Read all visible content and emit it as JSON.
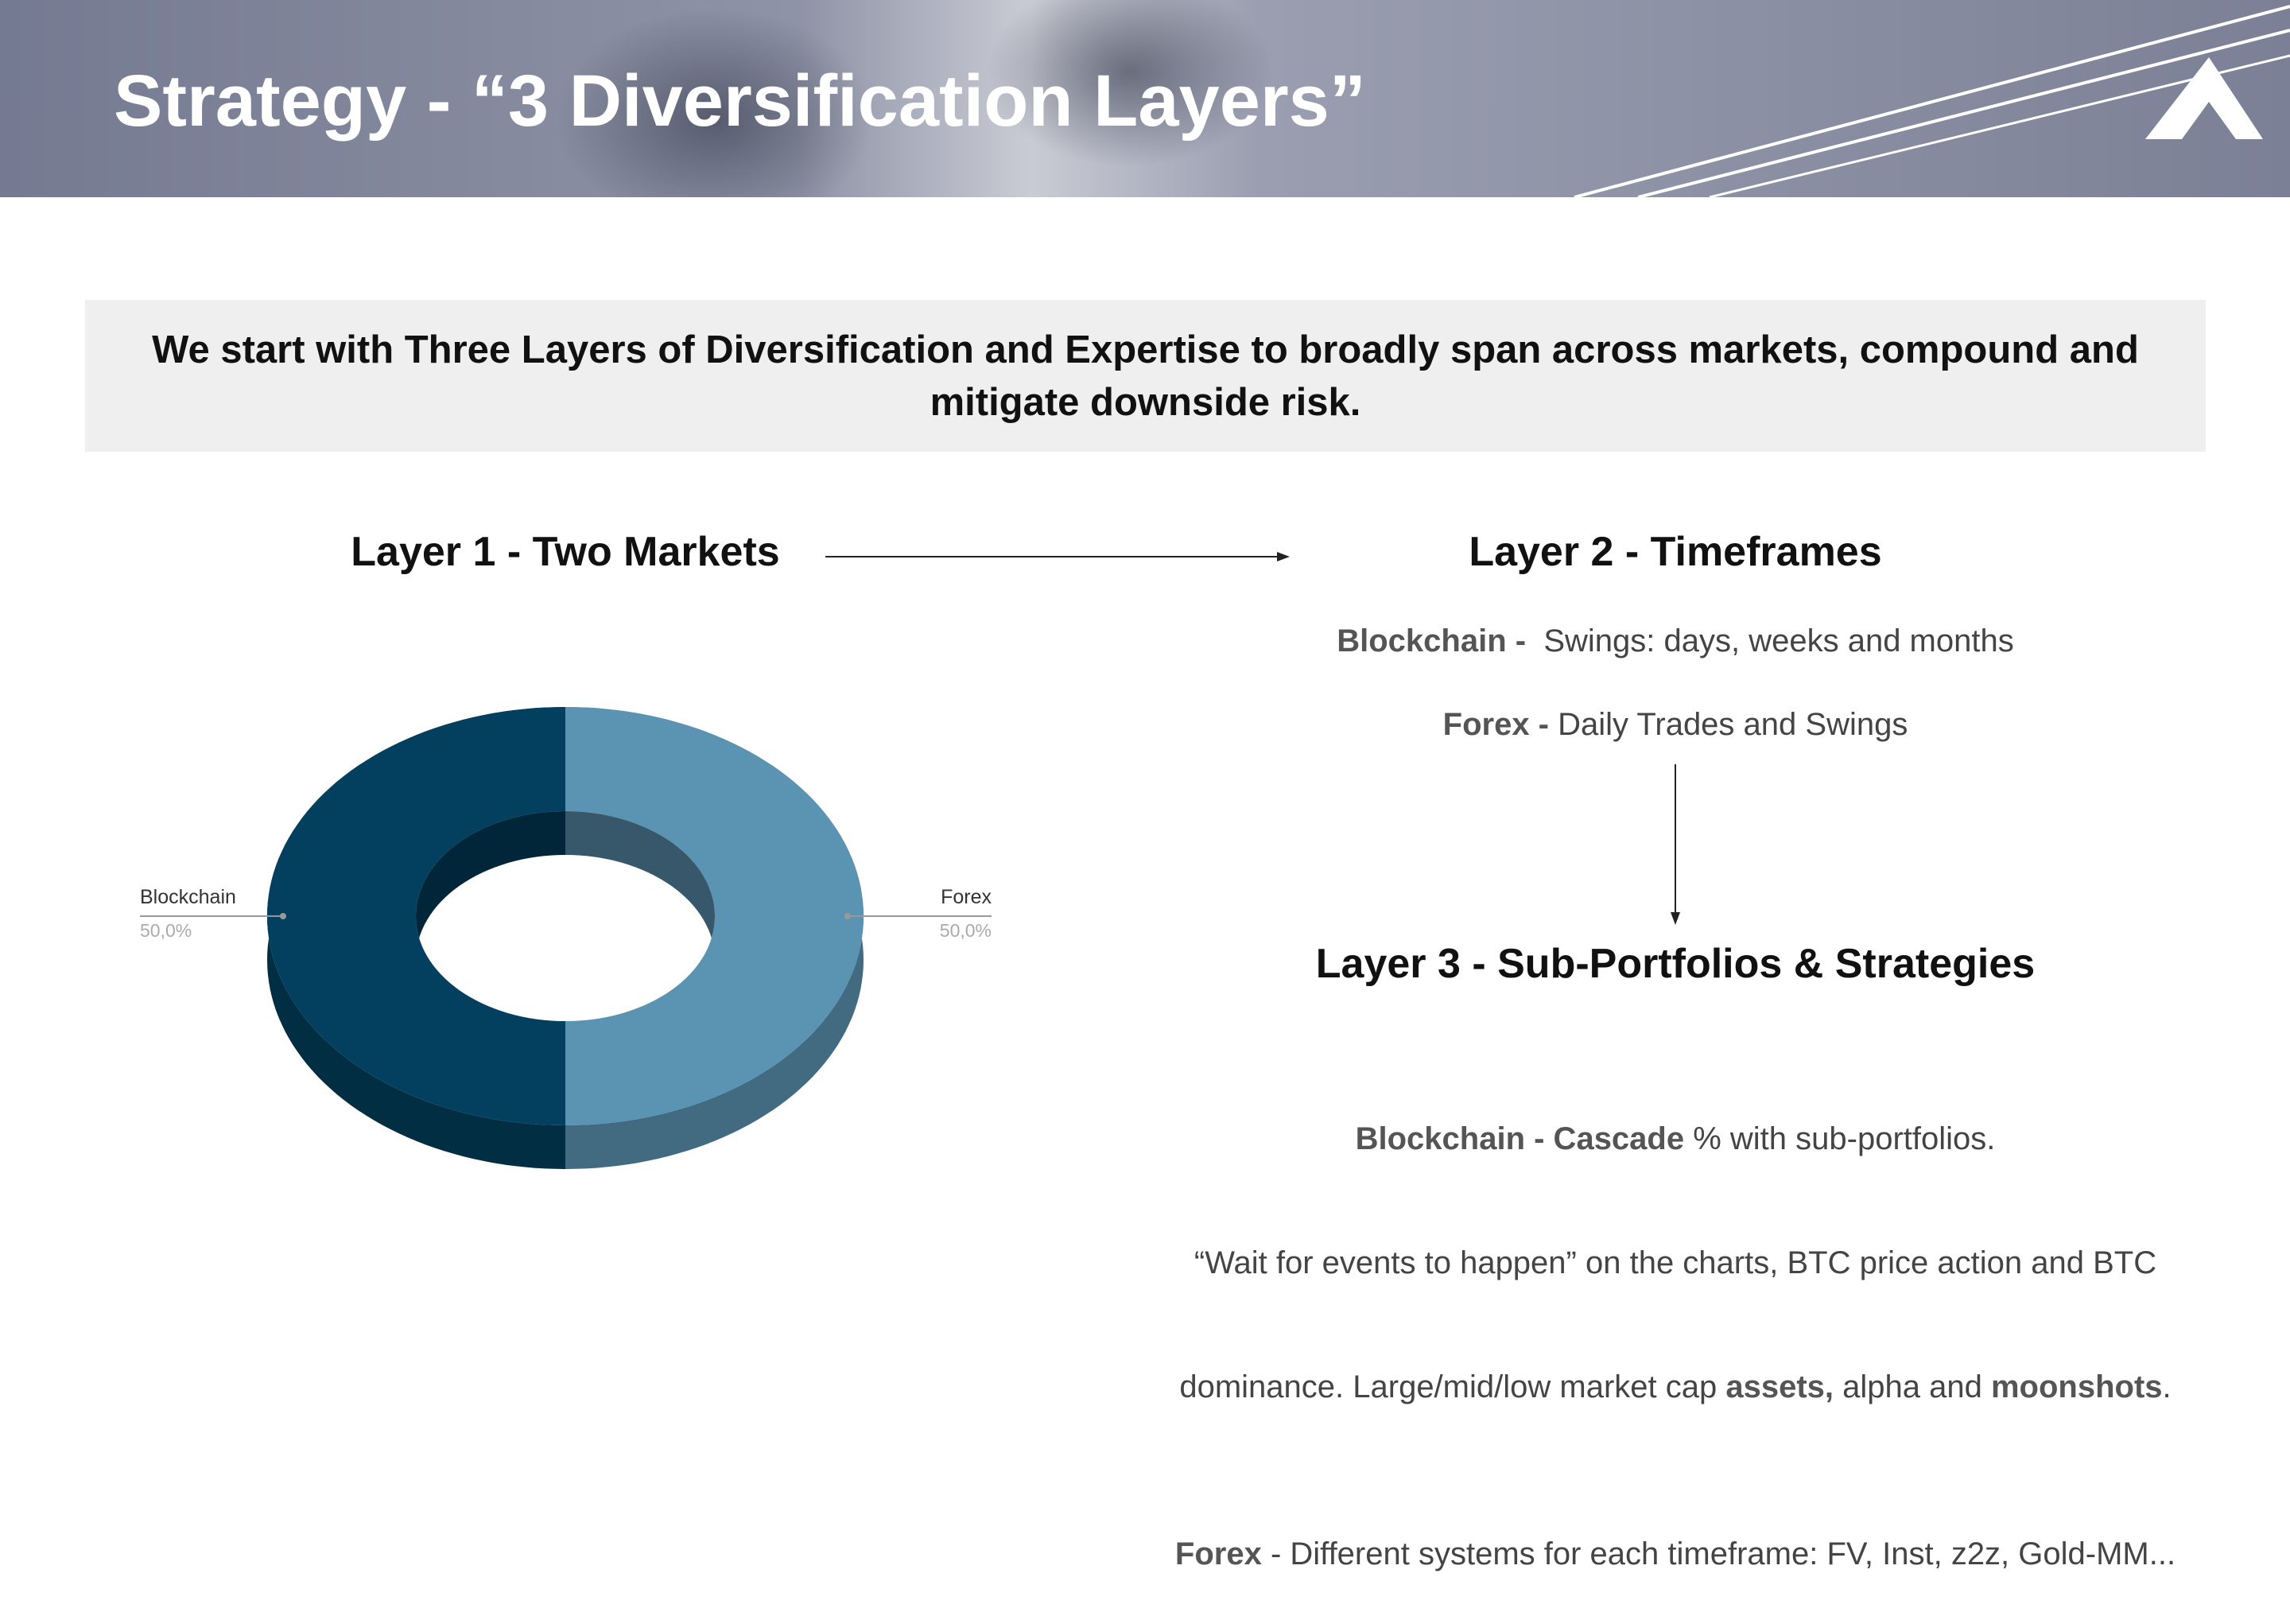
{
  "header": {
    "title": "Strategy - “3 Diversification Layers”"
  },
  "intro": "We start with Three Layers of Diversification and Expertise to broadly span across markets, compound and mitigate downside risk.",
  "layer1": {
    "title": "Layer 1 - Two Markets"
  },
  "layer2": {
    "title": "Layer 2 - Timeframes",
    "blockchain": [
      "Blockchain - ",
      " Swings: days, weeks and months"
    ],
    "forex": [
      "Forex - ",
      "Daily Trades and Swings"
    ]
  },
  "layer3": {
    "title": "Layer 3 - Sub-Portfolios & Strategies",
    "blockchain": [
      "Blockchain - Cascade",
      " % with sub-portfolios."
    ],
    "line2": "“Wait for events to happen” on the charts, BTC price action and BTC",
    "line3": [
      "dominance. Large/mid/low market cap ",
      "assets,",
      " alpha and ",
      "moonshots",
      "."
    ],
    "forex": [
      "Forex",
      " - Different systems for each timeframe: FV, Inst, z2z, Gold-MM..."
    ]
  },
  "chart_data": {
    "type": "pie",
    "donut": true,
    "categories": [
      "Blockchain",
      "Forex"
    ],
    "values": [
      50,
      50
    ],
    "value_labels": [
      "50,0%",
      "50,0%"
    ],
    "colors": [
      "#03405f",
      "#5b93b3"
    ]
  }
}
